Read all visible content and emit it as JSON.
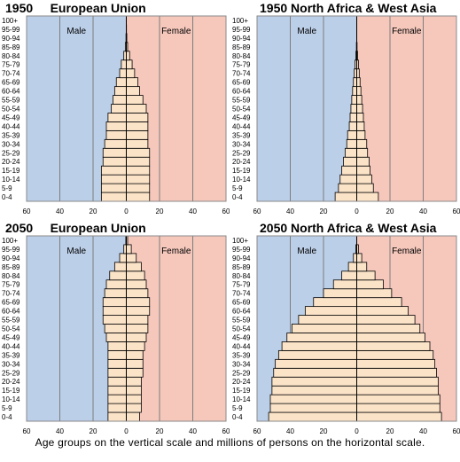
{
  "chart_data": [
    {
      "type": "bar",
      "title": "1950     European Union",
      "legend_male": "Male",
      "legend_female": "Female",
      "age_groups": [
        "0-4",
        "5-9",
        "10-14",
        "15-19",
        "20-24",
        "25-29",
        "30-34",
        "35-39",
        "40-44",
        "45-49",
        "50-54",
        "55-59",
        "60-64",
        "65-69",
        "70-74",
        "75-79",
        "80-84",
        "85-89",
        "90-94",
        "95-99",
        "100+"
      ],
      "x_ticks": [
        "60",
        "40",
        "20",
        "0",
        "20",
        "40",
        "60"
      ],
      "xlim": [
        -60,
        60
      ],
      "male": [
        15,
        15,
        15,
        15,
        14,
        14,
        13,
        12,
        12,
        11,
        9,
        8,
        7,
        6,
        4,
        3,
        1.5,
        0.6,
        0.2,
        0,
        0
      ],
      "female": [
        14,
        14,
        14,
        14,
        14,
        14,
        13,
        13,
        13,
        13,
        12,
        10,
        8,
        7,
        5,
        3.5,
        2,
        0.8,
        0.3,
        0.1,
        0
      ]
    },
    {
      "type": "bar",
      "title": "1950 North Africa & West Asia",
      "legend_male": "Male",
      "legend_female": "Female",
      "age_groups": [
        "0-4",
        "5-9",
        "10-14",
        "15-19",
        "20-24",
        "25-29",
        "30-34",
        "35-39",
        "40-44",
        "45-49",
        "50-54",
        "55-59",
        "60-64",
        "65-69",
        "70-74",
        "75-79",
        "80-84",
        "85-89",
        "90-94",
        "95-99",
        "100+"
      ],
      "x_ticks": [
        "60",
        "40",
        "20",
        "0",
        "20",
        "40",
        "60"
      ],
      "xlim": [
        -60,
        60
      ],
      "male": [
        13,
        11,
        10,
        9,
        8,
        7,
        6,
        5.5,
        4.5,
        4,
        3.5,
        3,
        2.5,
        2,
        1.5,
        1,
        0.5,
        0.2,
        0,
        0,
        0
      ],
      "female": [
        13,
        10,
        9,
        8,
        7.5,
        6.5,
        6,
        5,
        4.5,
        4,
        3.5,
        3,
        2.5,
        2,
        1.5,
        1,
        0.5,
        0.2,
        0,
        0,
        0
      ]
    },
    {
      "type": "bar",
      "title": "2050     European Union",
      "legend_male": "Male",
      "legend_female": "Female",
      "age_groups": [
        "0-4",
        "5-9",
        "10-14",
        "15-19",
        "20-24",
        "25-29",
        "30-34",
        "35-39",
        "40-44",
        "45-49",
        "50-54",
        "55-59",
        "60-64",
        "65-69",
        "70-74",
        "75-79",
        "80-84",
        "85-89",
        "90-94",
        "95-99",
        "100+"
      ],
      "x_ticks": [
        "60",
        "40",
        "20",
        "0",
        "20",
        "40",
        "60"
      ],
      "xlim": [
        -60,
        60
      ],
      "male": [
        11,
        11,
        11,
        11,
        11,
        11,
        11,
        11,
        11,
        12,
        13,
        14,
        14,
        14,
        13,
        12,
        10,
        7,
        4,
        1.5,
        0.3
      ],
      "female": [
        8,
        9,
        9,
        9,
        9,
        10,
        10,
        10,
        11,
        12,
        13,
        13,
        14,
        14,
        13,
        12,
        11,
        9,
        6,
        3,
        0.8
      ]
    },
    {
      "type": "bar",
      "title": "2050 North Africa & West Asia",
      "legend_male": "Male",
      "legend_female": "Female",
      "age_groups": [
        "0-4",
        "5-9",
        "10-14",
        "15-19",
        "20-24",
        "25-29",
        "30-34",
        "35-39",
        "40-44",
        "45-49",
        "50-54",
        "55-59",
        "60-64",
        "65-69",
        "70-74",
        "75-79",
        "80-84",
        "85-89",
        "90-94",
        "95-99",
        "100+"
      ],
      "x_ticks": [
        "60",
        "40",
        "20",
        "0",
        "20",
        "40",
        "60"
      ],
      "xlim": [
        -60,
        60
      ],
      "male": [
        53,
        52,
        52,
        51,
        51,
        50,
        49,
        47,
        45,
        42,
        39,
        35,
        31,
        26,
        20,
        14,
        9,
        5,
        2,
        0.5,
        0
      ],
      "female": [
        51,
        50,
        50,
        49,
        49,
        48,
        47,
        46,
        44,
        41,
        38,
        35,
        31,
        27,
        21,
        16,
        11,
        6,
        3,
        1,
        0
      ]
    }
  ],
  "caption": "Age groups on the vertical scale and millions of persons on the horizontal scale."
}
